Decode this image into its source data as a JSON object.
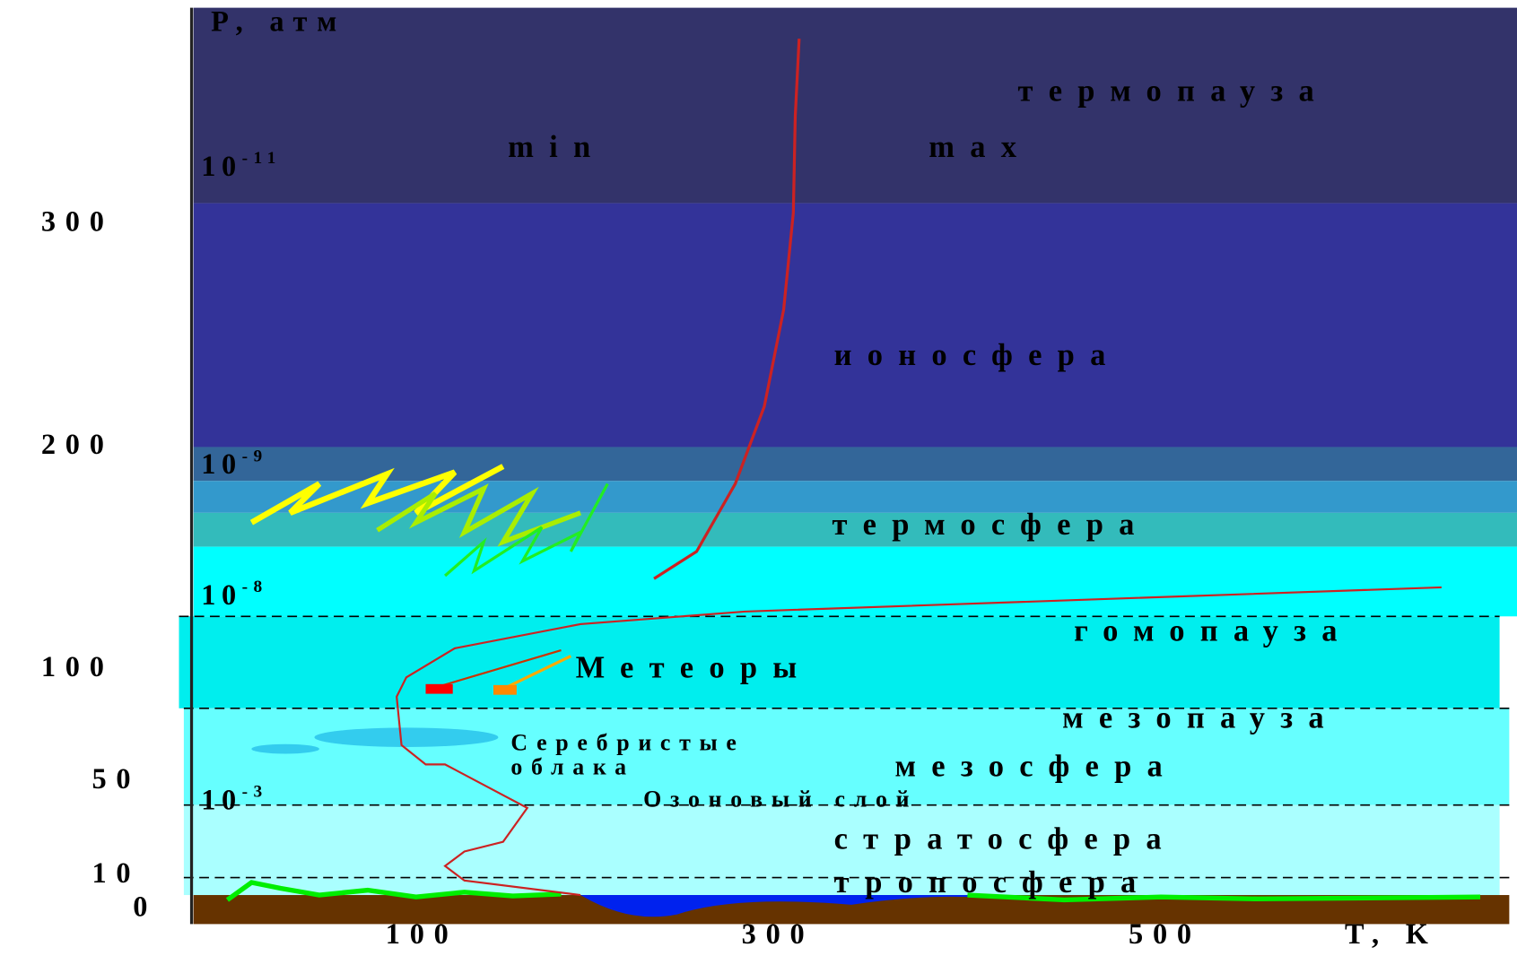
{
  "header": {
    "pressure_axis": "P, атм",
    "temperature_axis": "T, K"
  },
  "height_ticks": [
    "300",
    "200",
    "100",
    "50",
    "10",
    "0"
  ],
  "temperature_ticks": [
    "100",
    "300",
    "500"
  ],
  "pressure_labels": [
    {
      "base": "10",
      "exponent": "-11"
    },
    {
      "base": "10",
      "exponent": "-9"
    },
    {
      "base": "10",
      "exponent": "-8"
    },
    {
      "base": "10",
      "exponent": "-3"
    }
  ],
  "curve_labels": {
    "min": "min",
    "max": "max"
  },
  "layers": [
    "термопауза",
    "ионосфера",
    "термосфера",
    "гомопауза",
    "мезопауза",
    "мезосфера",
    "стратосфера",
    "тропосфера"
  ],
  "phenomena": {
    "meteors": "Метеоры",
    "clouds_line1": "Серебристые",
    "clouds_line2": "облака",
    "ozone": "Озоновый слой"
  }
}
